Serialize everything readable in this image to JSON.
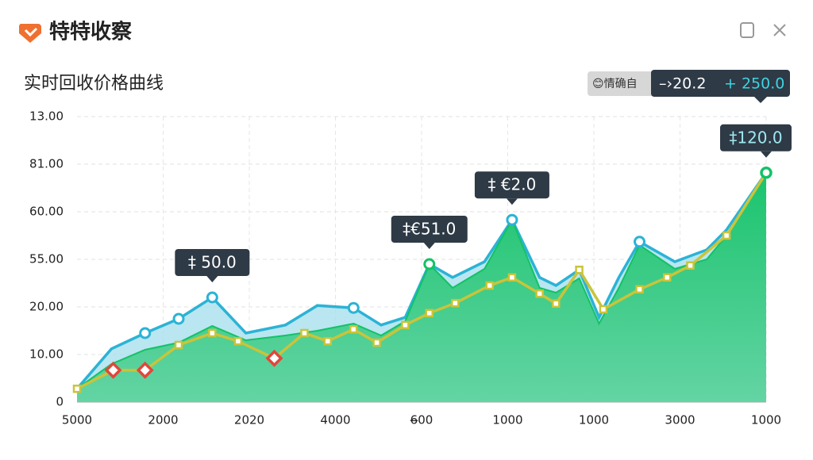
{
  "header": {
    "app_name": "特特收察"
  },
  "chart_data": {
    "type": "area-line",
    "title": "实时回收价格曲线",
    "legend": {
      "badge": "😊情确自",
      "items": [
        "–›20.2",
        "+ 250.0"
      ]
    },
    "categories": [
      "5000",
      "2000",
      "2020",
      "4000",
      "6̶00",
      "1000",
      "1000",
      "3000",
      "1000"
    ],
    "y_axis_labels": [
      "0",
      "10.00",
      "20.00",
      "55.00",
      "60.00",
      "81.00",
      "13.00"
    ],
    "xlim": [
      0,
      8
    ],
    "ylim": [
      0,
      60
    ],
    "yticks": [
      0,
      10,
      20,
      30,
      40,
      50,
      60
    ],
    "grid": true,
    "series": [
      {
        "color": "#2bb3d6",
        "fill": "#a8e0ec",
        "x": [
          0,
          0.4,
          0.79,
          1.18,
          1.57,
          1.96,
          2.42,
          2.79,
          3.21,
          3.53,
          3.81,
          4.09,
          4.36,
          4.73,
          5.05,
          5.37,
          5.56,
          5.83,
          6.06,
          6.29,
          6.53,
          6.94,
          7.31,
          7.54,
          8
        ],
        "values": [
          2.8,
          11.2,
          14.5,
          17.5,
          22,
          14.5,
          16.2,
          20.3,
          19.8,
          16.2,
          17.8,
          29,
          26.2,
          29.5,
          38.3,
          26.2,
          24.5,
          27.8,
          17.8,
          26.2,
          33.7,
          29.5,
          32,
          36.2,
          48.2
        ]
      },
      {
        "color": "#12c266",
        "fill": "#1fc774",
        "x": [
          0,
          0.4,
          0.79,
          1.18,
          1.57,
          1.96,
          2.42,
          2.79,
          3.21,
          3.53,
          3.81,
          4.09,
          4.36,
          4.73,
          5.05,
          5.37,
          5.56,
          5.83,
          6.06,
          6.29,
          6.53,
          6.94,
          7.31,
          7.54,
          8
        ],
        "values": [
          2.8,
          8,
          11,
          12.5,
          16,
          13,
          14,
          15,
          16.5,
          14,
          17,
          29,
          24,
          28,
          38.3,
          24,
          23,
          26,
          16.5,
          24,
          33,
          28,
          30,
          35,
          48.2
        ]
      },
      {
        "color": "#c9c43a",
        "x": [
          0,
          0.42,
          0.79,
          1.18,
          1.57,
          1.87,
          2.29,
          2.64,
          2.91,
          3.21,
          3.48,
          3.81,
          4.09,
          4.39,
          4.79,
          5.05,
          5.37,
          5.56,
          5.83,
          6.11,
          6.53,
          6.85,
          7.12,
          7.54,
          8
        ],
        "values": [
          2.8,
          6.7,
          6.7,
          12,
          14.5,
          12.8,
          9.2,
          14.5,
          12.8,
          15.3,
          12.5,
          16.2,
          18.7,
          20.8,
          24.5,
          26.2,
          22.8,
          20.7,
          27.8,
          19.5,
          23.7,
          26.2,
          28.7,
          35,
          48.2
        ]
      }
    ],
    "annotations": [
      "‡ 50.0",
      "‡€51.0",
      "‡ €2.0",
      "‡120.0"
    ]
  }
}
